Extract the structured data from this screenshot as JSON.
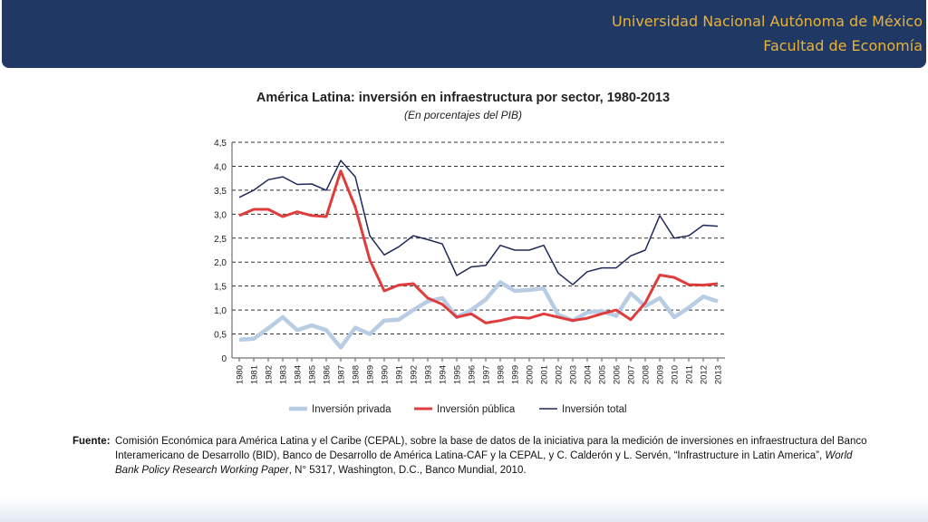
{
  "header": {
    "line1": "Universidad Nacional Autónoma de México",
    "line2": "Facultad de Economía",
    "bg_color": "#1f3864",
    "text_color": "#e8b33b"
  },
  "chart_data": {
    "type": "line",
    "title": "América Latina: inversión en infraestructura por sector, 1980-2013",
    "subtitle": "(En porcentajes del PIB)",
    "xlabel": "",
    "ylabel": "",
    "ylim": [
      0,
      4.5
    ],
    "y_ticks": [
      "0",
      "0,5",
      "1,0",
      "1,5",
      "2,0",
      "2,5",
      "3,0",
      "3,5",
      "4,0",
      "4,5"
    ],
    "grid": true,
    "legend_position": "bottom",
    "categories": [
      "1980",
      "1981",
      "1982",
      "1983",
      "1984",
      "1985",
      "1986",
      "1987",
      "1988",
      "1989",
      "1990",
      "1991",
      "1992",
      "1993",
      "1994",
      "1995",
      "1996",
      "1997",
      "1998",
      "1999",
      "2000",
      "2001",
      "2002",
      "2003",
      "2004",
      "2005",
      "2006",
      "2007",
      "2008",
      "2009",
      "2010",
      "2011",
      "2012",
      "2013"
    ],
    "series": [
      {
        "name": "Inversión privada",
        "color": "#b8cce4",
        "values": [
          0.38,
          0.4,
          0.62,
          0.85,
          0.58,
          0.68,
          0.58,
          0.22,
          0.63,
          0.5,
          0.78,
          0.8,
          1.0,
          1.18,
          1.25,
          0.85,
          1.0,
          1.22,
          1.58,
          1.4,
          1.42,
          1.45,
          0.9,
          0.78,
          0.95,
          0.98,
          0.88,
          1.35,
          1.08,
          1.25,
          0.85,
          1.05,
          1.28,
          1.18
        ]
      },
      {
        "name": "Inversión pública",
        "color": "#e03c3c",
        "values": [
          2.97,
          3.1,
          3.1,
          2.95,
          3.05,
          2.97,
          2.95,
          3.9,
          3.15,
          2.05,
          1.4,
          1.52,
          1.55,
          1.25,
          1.12,
          0.85,
          0.92,
          0.73,
          0.78,
          0.85,
          0.83,
          0.92,
          0.85,
          0.78,
          0.83,
          0.92,
          1.0,
          0.8,
          1.15,
          1.73,
          1.68,
          1.53,
          1.52,
          1.55
        ]
      },
      {
        "name": "Inversión total",
        "color": "#1f2a5a",
        "values": [
          3.35,
          3.5,
          3.72,
          3.78,
          3.62,
          3.63,
          3.5,
          4.12,
          3.78,
          2.55,
          2.15,
          2.32,
          2.55,
          2.47,
          2.38,
          1.72,
          1.9,
          1.93,
          2.35,
          2.25,
          2.25,
          2.35,
          1.77,
          1.53,
          1.8,
          1.88,
          1.88,
          2.13,
          2.25,
          2.97,
          2.5,
          2.55,
          2.77,
          2.75
        ]
      }
    ]
  },
  "source": {
    "label": "Fuente",
    "colon": ":",
    "text_part1": "Comisión Económica para América Latina y el Caribe (CEPAL), sobre la base de datos de la iniciativa para la medición de inversiones en infraestructura del Banco Interamericano de Desarrollo (BID), Banco de Desarrollo de América Latina-CAF y la CEPAL, y C. Calderón y L. Servén, “Infrastructure in Latin America”, ",
    "text_italic": "World Bank Policy Research Working Paper",
    "text_part2": ", N° 5317, Washington, D.C., Banco Mundial, 2010."
  }
}
